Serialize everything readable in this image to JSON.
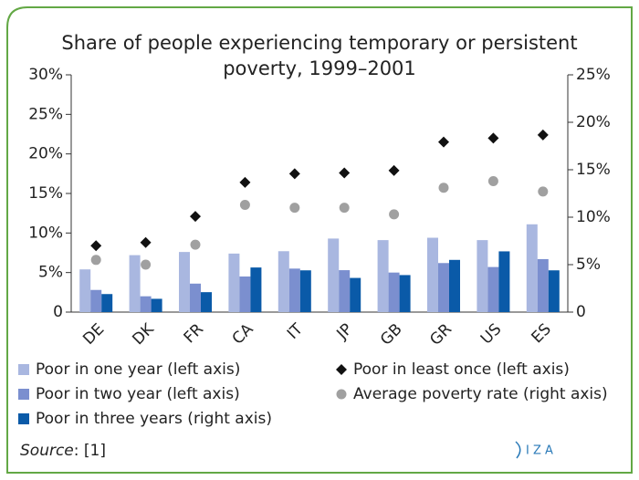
{
  "chart_data": {
    "type": "bar",
    "title": [
      "Share of people experiencing temporary or persistent",
      "poverty, 1999–2001"
    ],
    "categories": [
      "DE",
      "DK",
      "FR",
      "CA",
      "IT",
      "JP",
      "GB",
      "GR",
      "US",
      "ES"
    ],
    "series": [
      {
        "name": "Poor in one year (left axis)",
        "type": "bar",
        "color": "#a9b7e0",
        "values": [
          5.4,
          7.2,
          7.6,
          7.4,
          7.7,
          9.3,
          9.1,
          9.4,
          9.1,
          11.1
        ]
      },
      {
        "name": "Poor in two year (left axis)",
        "type": "bar",
        "color": "#7b8fcf",
        "values": [
          2.8,
          2.0,
          3.6,
          4.5,
          5.5,
          5.3,
          5.0,
          6.2,
          5.7,
          6.7
        ]
      },
      {
        "name": "Poor in three years (right axis)",
        "type": "bar",
        "axis": "y2",
        "color": "#0a5aa8",
        "values": [
          1.9,
          1.4,
          2.1,
          4.7,
          4.4,
          3.6,
          3.9,
          5.5,
          6.4,
          4.4
        ]
      },
      {
        "name": "Poor in least once (left axis)",
        "type": "diamond",
        "color": "#111111",
        "values": [
          8.4,
          8.8,
          12.1,
          16.4,
          17.5,
          17.6,
          17.9,
          21.5,
          22.0,
          22.4
        ]
      },
      {
        "name": "Average poverty rate (right axis)",
        "type": "circle",
        "axis": "y2",
        "color": "#a0a0a0",
        "values": [
          5.5,
          5.0,
          7.1,
          11.3,
          11.0,
          11.0,
          10.3,
          13.1,
          13.8,
          12.7
        ]
      }
    ],
    "ylim": [
      0,
      30
    ],
    "yticks": [
      0,
      {
        "value": 5,
        "label": "5%"
      },
      {
        "value": 10,
        "label": "10%"
      },
      {
        "value": 15,
        "label": "15%"
      },
      {
        "value": 20,
        "label": "20%"
      },
      {
        "value": 25,
        "label": "25%"
      },
      {
        "value": 30,
        "label": "30%"
      }
    ],
    "y2lim": [
      0,
      25
    ],
    "y2ticks": [
      0,
      {
        "value": 5,
        "label": "5%"
      },
      {
        "value": 10,
        "label": "10%"
      },
      {
        "value": 15,
        "label": "15%"
      },
      {
        "value": 20,
        "label": "20%"
      },
      {
        "value": 25,
        "label": "25%"
      }
    ],
    "source_label": "Source",
    "source_text": ": [1]",
    "logo": "I Z A"
  }
}
